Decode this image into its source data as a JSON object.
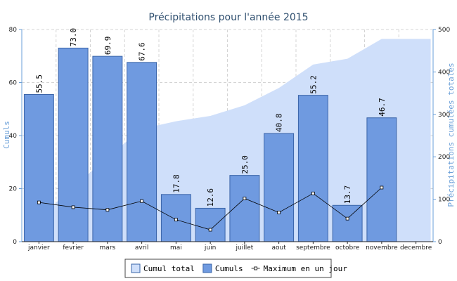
{
  "chart_data": {
    "type": "bar",
    "title": "Précipitations pour l'année 2015",
    "xlabel": "",
    "ylabel": "Cumuls",
    "y2label": "Précipitations cumulées totales",
    "ylim": [
      0,
      80
    ],
    "y2lim": [
      0,
      500
    ],
    "yticks": [
      "0",
      "20",
      "40",
      "60",
      "80"
    ],
    "y2ticks": [
      "0",
      "100",
      "200",
      "300",
      "400",
      "500"
    ],
    "grid": true,
    "legend_position": "bottom",
    "categories": [
      "janvier",
      "fevrier",
      "mars",
      "avril",
      "mai",
      "juin",
      "juillet",
      "aout",
      "septembre",
      "octobre",
      "novembre",
      "decembre"
    ],
    "series": [
      {
        "name": "Cumul total",
        "type": "area",
        "axis": "right",
        "color": "#cfdffa",
        "values": [
          55.5,
          128.5,
          198.4,
          266.0,
          283.8,
          296.4,
          321.4,
          362.2,
          417.4,
          431.1,
          477.8,
          477.8
        ]
      },
      {
        "name": "Cumuls",
        "type": "bar",
        "axis": "left",
        "color": "#6f9ae0",
        "values": [
          55.5,
          73.0,
          69.9,
          67.6,
          17.8,
          12.6,
          25.0,
          40.8,
          55.2,
          13.7,
          46.7,
          null
        ],
        "labels": [
          "55.5",
          "73.0",
          "69.9",
          "67.6",
          "17.8",
          "12.6",
          "25.0",
          "40.8",
          "55.2",
          "13.7",
          "46.7",
          ""
        ]
      },
      {
        "name": "Maximum en un jour",
        "type": "line",
        "axis": "left",
        "color": "#000000",
        "values": [
          14.8,
          13.0,
          12.0,
          15.3,
          8.3,
          4.5,
          16.3,
          11.0,
          18.2,
          8.7,
          20.4,
          null
        ]
      }
    ]
  }
}
